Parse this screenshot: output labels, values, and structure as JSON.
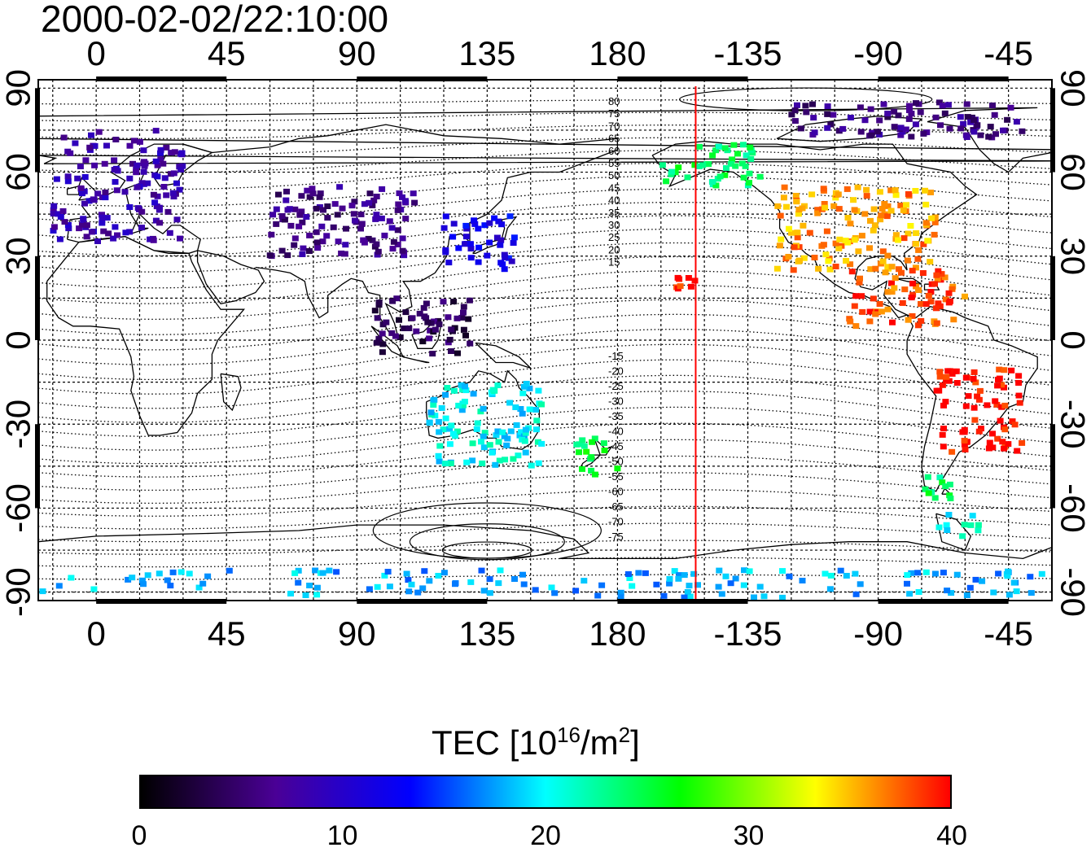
{
  "title": "2000-02-02/22:10:00",
  "map": {
    "x_axis_top_labels": [
      "0",
      "45",
      "90",
      "135",
      "180",
      "-135",
      "-90",
      "-45"
    ],
    "x_axis_bottom_labels": [
      "0",
      "45",
      "90",
      "135",
      "180",
      "-135",
      "-90",
      "-45"
    ],
    "x_axis_values": [
      0,
      45,
      90,
      135,
      180,
      225,
      270,
      315
    ],
    "y_axis_left_labels": [
      "90",
      "60",
      "30",
      "0",
      "-30",
      "-60",
      "-90"
    ],
    "y_axis_right_labels": [
      "90",
      "60",
      "30",
      "0",
      "-30",
      "-60",
      "-90"
    ],
    "y_axis_values": [
      90,
      60,
      30,
      0,
      -30,
      -60,
      -90
    ],
    "lon_range": [
      -20,
      330
    ],
    "lat_range": [
      -93,
      93
    ],
    "grid": "dotted",
    "terminator_line_lon": 207,
    "terminator_color": "#ff0000",
    "magnetic_latitude_labels_north": [
      "80",
      "75",
      "70",
      "65",
      "60",
      "55",
      "50",
      "45",
      "40",
      "35",
      "30",
      "25",
      "20",
      "15"
    ],
    "magnetic_latitude_labels_south": [
      "-15",
      "-20",
      "-25",
      "-30",
      "-35",
      "-40",
      "-45",
      "-50",
      "-55",
      "-60",
      "-65",
      "-70",
      "-75"
    ]
  },
  "chart_data": {
    "type": "heatmap",
    "variable": "TEC",
    "units": "10^16/m^2",
    "color_range": [
      0,
      40
    ],
    "colormap": [
      "#000000",
      "#4a0096",
      "#0000ff",
      "#00ffff",
      "#00ff00",
      "#ffff00",
      "#ff0000"
    ],
    "regions": [
      {
        "area": "Europe",
        "lon_range": [
          -15,
          30
        ],
        "lat_range": [
          35,
          75
        ],
        "tec_approx": 8
      },
      {
        "area": "Japan / East Asia",
        "lon_range": [
          120,
          145
        ],
        "lat_range": [
          25,
          45
        ],
        "tec_approx": 12
      },
      {
        "area": "Central Asia",
        "lon_range": [
          60,
          110
        ],
        "lat_range": [
          30,
          55
        ],
        "tec_approx": 6
      },
      {
        "area": "Southeast Asia",
        "lon_range": [
          95,
          130
        ],
        "lat_range": [
          -5,
          15
        ],
        "tec_approx": 4
      },
      {
        "area": "Australia",
        "lon_range": [
          115,
          155
        ],
        "lat_range": [
          -45,
          -15
        ],
        "tec_approx": 20
      },
      {
        "area": "New Zealand",
        "lon_range": [
          165,
          180
        ],
        "lat_range": [
          -48,
          -35
        ],
        "tec_approx": 25
      },
      {
        "area": "North America",
        "lon_range": [
          -125,
          -70
        ],
        "lat_range": [
          25,
          55
        ],
        "tec_approx": 36
      },
      {
        "area": "Alaska",
        "lon_range": [
          -165,
          -130
        ],
        "lat_range": [
          55,
          70
        ],
        "tec_approx": 24
      },
      {
        "area": "Hawaii",
        "lon_range": [
          -160,
          -150
        ],
        "lat_range": [
          18,
          23
        ],
        "tec_approx": 40
      },
      {
        "area": "Central America",
        "lon_range": [
          -100,
          -60
        ],
        "lat_range": [
          5,
          25
        ],
        "tec_approx": 38
      },
      {
        "area": "South America",
        "lon_range": [
          -70,
          -40
        ],
        "lat_range": [
          -40,
          -10
        ],
        "tec_approx": 40
      },
      {
        "area": "Patagonia",
        "lon_range": [
          -75,
          -65
        ],
        "lat_range": [
          -58,
          -45
        ],
        "tec_approx": 24
      },
      {
        "area": "Antarctic Peninsula",
        "lon_range": [
          -70,
          -55
        ],
        "lat_range": [
          -70,
          -62
        ],
        "tec_approx": 20
      },
      {
        "area": "Antarctica",
        "lon_range": [
          -20,
          330
        ],
        "lat_range": [
          -92,
          -82
        ],
        "tec_approx": 18
      },
      {
        "area": "Arctic",
        "lon_range": [
          -120,
          -40
        ],
        "lat_range": [
          72,
          85
        ],
        "tec_approx": 6
      }
    ]
  },
  "colorbar": {
    "title": "TEC  [10",
    "title_sup_1": "16",
    "title_mid": "/m",
    "title_sup_2": "2",
    "title_end": "]",
    "tick_labels": [
      "0",
      "10",
      "20",
      "30",
      "40"
    ],
    "tick_values": [
      0,
      10,
      20,
      30,
      40
    ]
  }
}
